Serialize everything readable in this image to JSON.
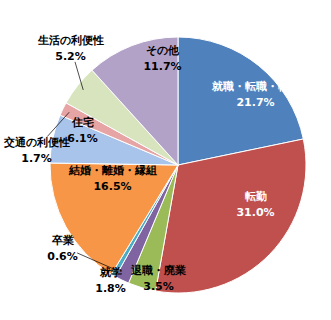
{
  "chart_data": {
    "type": "pie",
    "categories": [
      "就職・転職・転業",
      "転勤",
      "退職・廃業",
      "就学",
      "卒業",
      "結婚・離婚・縁組",
      "住宅",
      "交通の利便性",
      "生活の利便性",
      "その他"
    ],
    "values": [
      21.7,
      31.0,
      3.5,
      1.8,
      0.6,
      16.5,
      6.1,
      1.7,
      5.2,
      11.7
    ],
    "value_labels": [
      "21.7%",
      "31.0%",
      "3.5%",
      "1.8%",
      "0.6%",
      "16.5%",
      "6.1%",
      "1.7%",
      "5.2%",
      "11.7%"
    ],
    "colors": [
      "#4f81bd",
      "#c0504d",
      "#9bbb59",
      "#8064a2",
      "#4bacc6",
      "#f79646",
      "#a9c4eb",
      "#e6a5a4",
      "#d7e4bd",
      "#b3a2c7"
    ],
    "data_labels": true
  }
}
